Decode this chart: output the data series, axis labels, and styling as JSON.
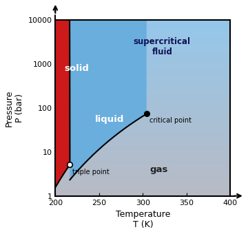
{
  "xlabel": "Temperature\nT (K)",
  "ylabel": "Pressure\nP (bar)",
  "xlim": [
    200,
    400
  ],
  "yticks": [
    1,
    10,
    100,
    1000,
    10000
  ],
  "xticks": [
    200,
    250,
    300,
    350,
    400
  ],
  "triple_point": [
    216.6,
    5.18
  ],
  "critical_point": [
    304.2,
    73.8
  ],
  "solid_color": "#cc1a1a",
  "liquid_color": "#7ab0e0",
  "gas_color": "#b0b0b8",
  "supercritical_color": "#a0c0e0",
  "label_solid": "solid",
  "label_liquid": "liquid",
  "label_gas": "gas",
  "label_supercritical": "supercritical\nfluid",
  "label_triple": "triple point",
  "label_critical": "critical point"
}
